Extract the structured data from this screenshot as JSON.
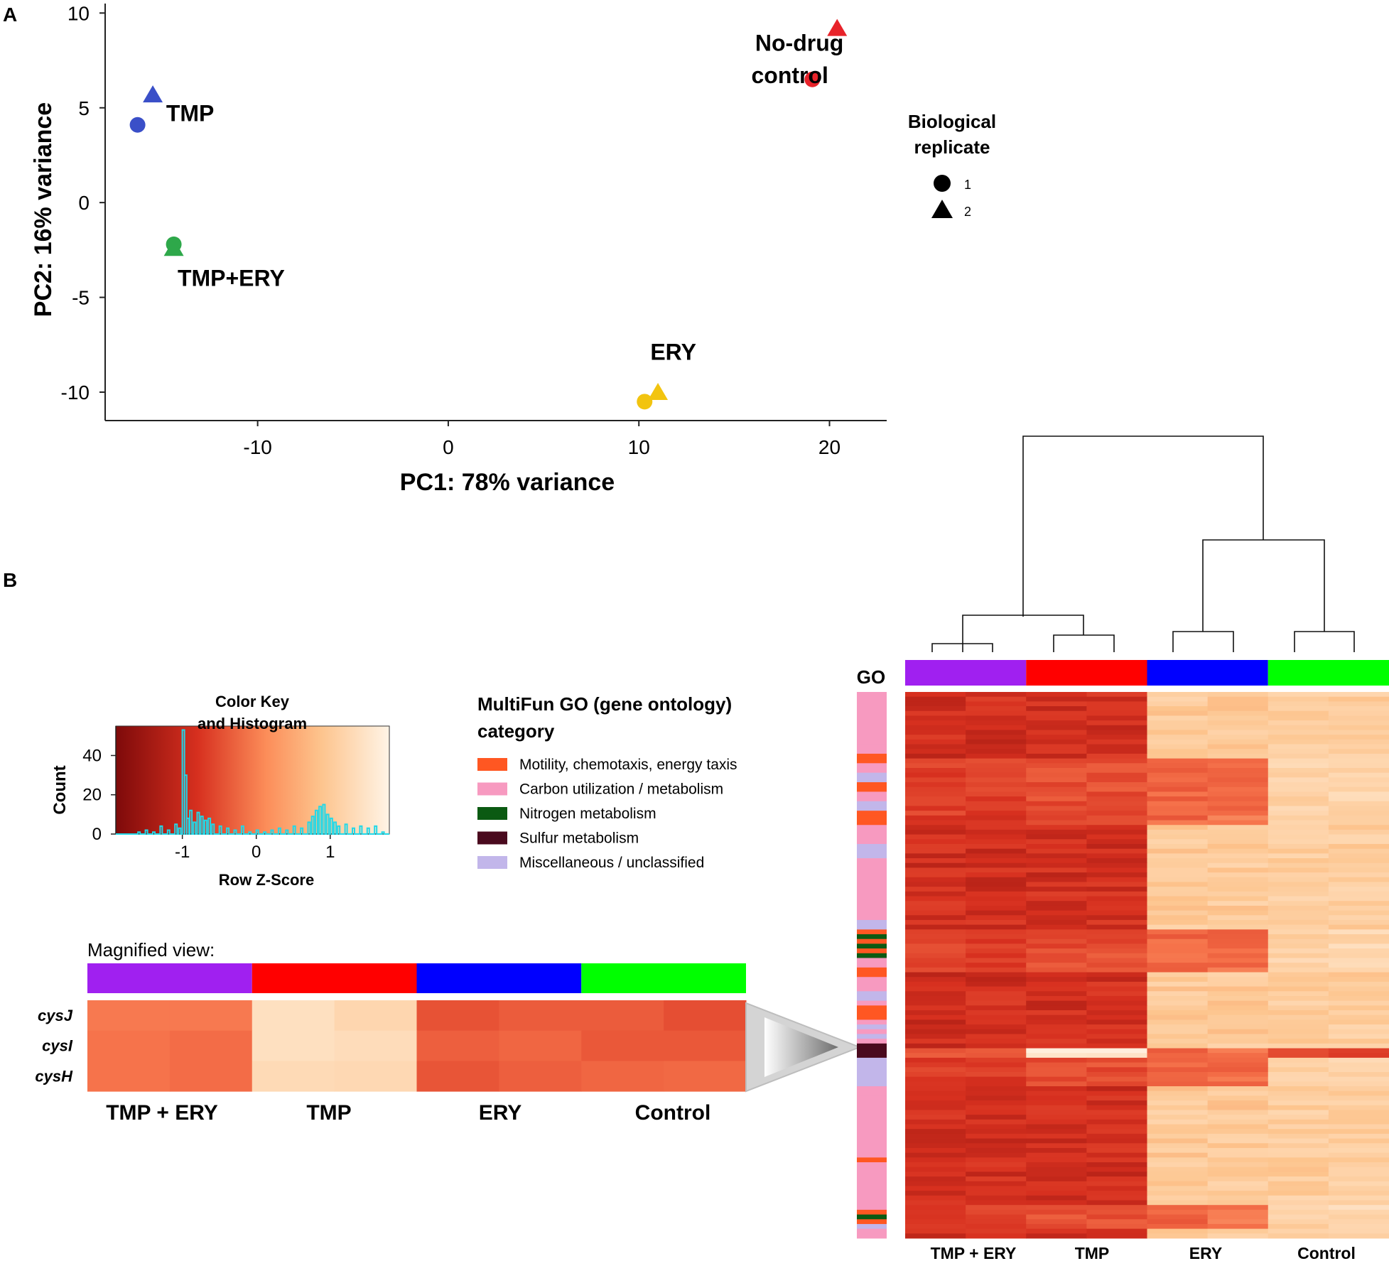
{
  "colors": {
    "tmp_ery": "#a020f0",
    "tmp": "#ff0000",
    "ery": "#0000ff",
    "control": "#00ff00",
    "pca_tmp": "#3a4fc8",
    "pca_tmp_ery": "#2ea84a",
    "pca_ery": "#f2c40f",
    "pca_nodrug": "#e8232a",
    "go_motility": "#ff5722",
    "go_carbon": "#f79ac0",
    "go_nitrogen": "#0b5a12",
    "go_sulfur": "#4a0a1e",
    "go_misc": "#c2b6ea",
    "histogram": "#22d8e8"
  },
  "panel_a": {
    "label": "A",
    "legend": {
      "title": [
        "Biological",
        "replicate"
      ],
      "items": [
        {
          "shape": "circle",
          "label": "1"
        },
        {
          "shape": "triangle",
          "label": "2"
        }
      ]
    }
  },
  "panel_b": {
    "label": "B",
    "go_label": "GO",
    "go_legend": {
      "title": [
        "MultiFun GO (gene ontology)",
        "category"
      ],
      "items": [
        {
          "key": "go_motility",
          "label": "Motility, chemotaxis, energy taxis"
        },
        {
          "key": "go_carbon",
          "label": "Carbon utilization / metabolism"
        },
        {
          "key": "go_nitrogen",
          "label": "Nitrogen metabolism"
        },
        {
          "key": "go_sulfur",
          "label": "Sulfur metabolism"
        },
        {
          "key": "go_misc",
          "label": "Miscellaneous / unclassified"
        }
      ]
    },
    "magnified": {
      "title": "Magnified view:",
      "genes": [
        "cysJ",
        "cysI",
        "cysH"
      ],
      "groups": [
        "TMP + ERY",
        "TMP",
        "ERY",
        "Control"
      ],
      "z": [
        [
          0.05,
          0.05,
          1.45,
          1.2,
          -0.5,
          -0.35,
          -0.35,
          -0.55
        ],
        [
          0.0,
          -0.1,
          1.45,
          1.35,
          -0.3,
          -0.2,
          -0.4,
          -0.4
        ],
        [
          0.0,
          -0.1,
          1.3,
          1.25,
          -0.45,
          -0.3,
          -0.2,
          -0.15
        ]
      ]
    },
    "heatmap_groups": [
      "TMP + ERY",
      "TMP",
      "ERY",
      "Control"
    ]
  },
  "chart_data": [
    {
      "type": "scatter",
      "title": "",
      "xlabel": "PC1: 78% variance",
      "ylabel": "PC2: 16% variance",
      "xlim": [
        -18,
        23
      ],
      "ylim": [
        -11.5,
        10.5
      ],
      "xticks": [
        -10,
        0,
        10,
        20
      ],
      "yticks": [
        -10,
        -5,
        0,
        5,
        10
      ],
      "grid": false,
      "legend_position": "right",
      "points": [
        {
          "group": "TMP",
          "replicate": 1,
          "x": -16.3,
          "y": 4.1
        },
        {
          "group": "TMP",
          "replicate": 2,
          "x": -15.5,
          "y": 5.7
        },
        {
          "group": "TMP+ERY",
          "replicate": 1,
          "x": -14.4,
          "y": -2.2
        },
        {
          "group": "TMP+ERY",
          "replicate": 2,
          "x": -14.4,
          "y": -2.4
        },
        {
          "group": "ERY",
          "replicate": 1,
          "x": 10.3,
          "y": -10.5
        },
        {
          "group": "ERY",
          "replicate": 2,
          "x": 11.0,
          "y": -10.0
        },
        {
          "group": "No-drug control",
          "replicate": 1,
          "x": 19.1,
          "y": 6.5
        },
        {
          "group": "No-drug control",
          "replicate": 2,
          "x": 20.4,
          "y": 9.2
        }
      ],
      "point_labels": [
        {
          "text": "TMP",
          "x": -14.8,
          "y": 4.3
        },
        {
          "text": "TMP+ERY",
          "x": -14.2,
          "y": -4.4
        },
        {
          "text": "ERY",
          "x": 10.6,
          "y": -8.3
        },
        {
          "text": "No-drug",
          "x": 16.1,
          "y": 8.0
        },
        {
          "text": "control",
          "x": 15.9,
          "y": 6.3
        }
      ]
    },
    {
      "type": "histogram",
      "title": "Color Key and Histogram",
      "title_lines": [
        "Color Key",
        "and Histogram"
      ],
      "xlabel": "Row Z-Score",
      "ylabel": "Count",
      "xlim": [
        -1.9,
        1.8
      ],
      "ylim": [
        0,
        55
      ],
      "xticks": [
        -1,
        0,
        1
      ],
      "yticks": [
        0,
        20,
        40
      ],
      "color_scale": [
        "#7e0a0a",
        "#ef5535",
        "#fdaa74",
        "#fff2e0"
      ],
      "bins_x": [
        -1.6,
        -1.5,
        -1.4,
        -1.3,
        -1.2,
        -1.1,
        -1.05,
        -1.0,
        -0.97,
        -0.94,
        -0.9,
        -0.85,
        -0.8,
        -0.75,
        -0.7,
        -0.65,
        -0.6,
        -0.5,
        -0.4,
        -0.3,
        -0.2,
        -0.1,
        0.0,
        0.1,
        0.2,
        0.3,
        0.4,
        0.5,
        0.6,
        0.7,
        0.75,
        0.8,
        0.85,
        0.9,
        0.95,
        1.0,
        1.05,
        1.1,
        1.2,
        1.3,
        1.4,
        1.5,
        1.6,
        1.7
      ],
      "counts": [
        1,
        2,
        1,
        4,
        2,
        5,
        3,
        53,
        30,
        8,
        12,
        6,
        11,
        9,
        7,
        8,
        5,
        4,
        3,
        2,
        4,
        1,
        2,
        1,
        2,
        3,
        2,
        4,
        3,
        6,
        9,
        12,
        14,
        15,
        10,
        8,
        6,
        4,
        5,
        3,
        4,
        3,
        4,
        1
      ]
    },
    {
      "type": "heatmap",
      "title": "",
      "xlabel": "",
      "ylabel": "",
      "columns": [
        "TMP + ERY",
        "TMP + ERY",
        "TMP",
        "TMP",
        "ERY",
        "ERY",
        "Control",
        "Control"
      ],
      "column_groups": [
        "TMP + ERY",
        "TMP",
        "ERY",
        "Control"
      ],
      "n_rows": 115,
      "value_type": "Row Z-Score",
      "dendrogram": "TMP+ERY with TMP; ERY with Control"
    }
  ]
}
